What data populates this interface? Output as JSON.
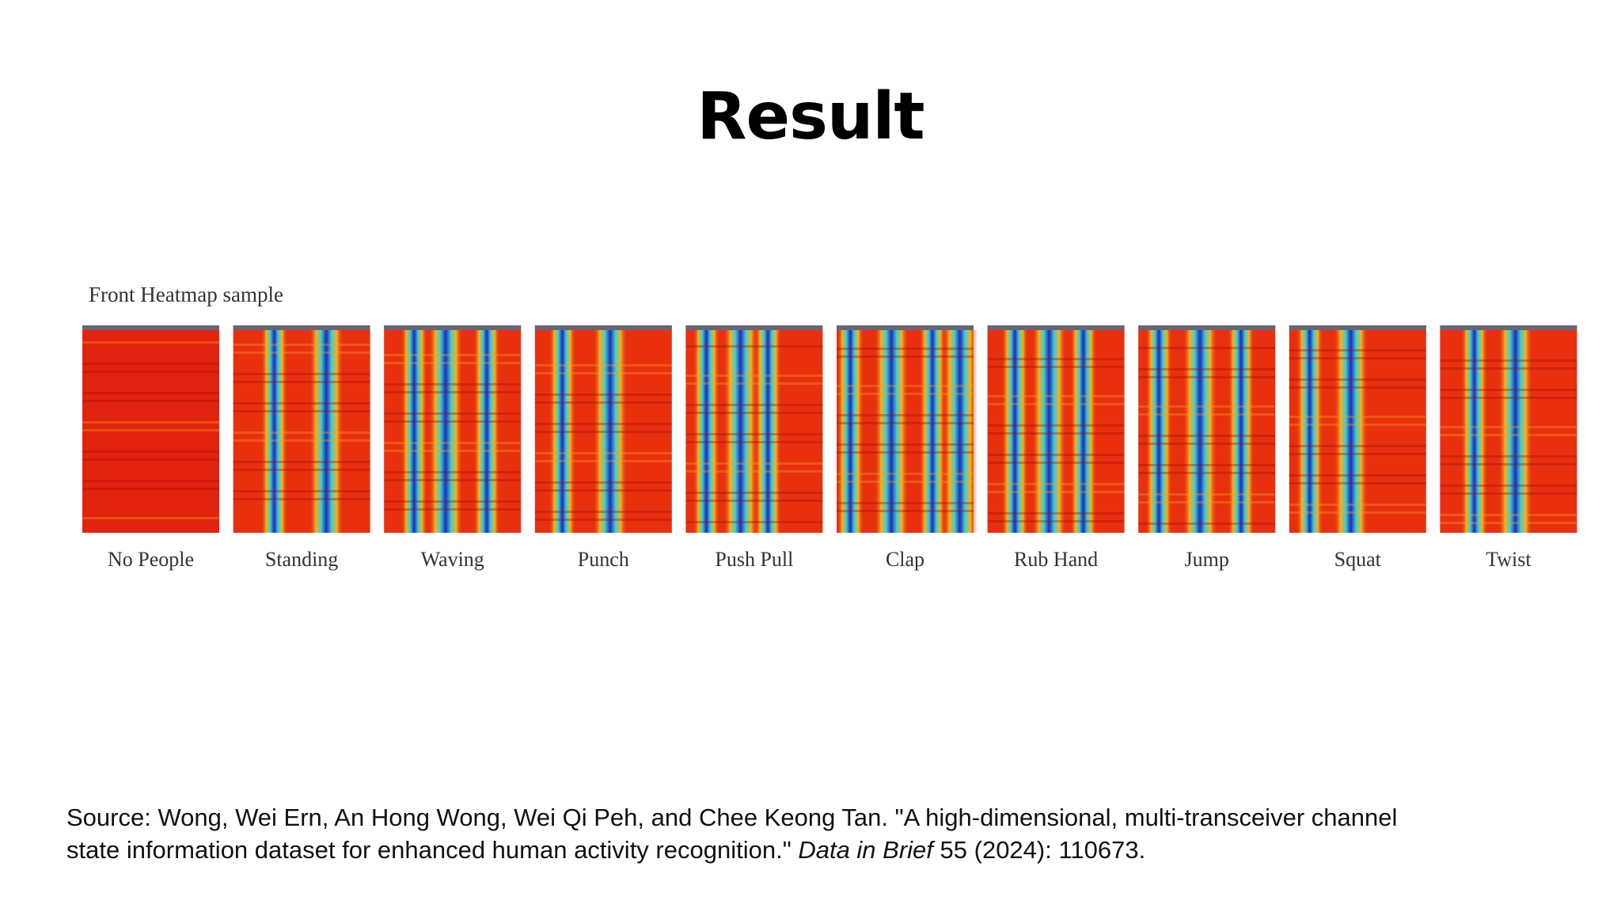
{
  "slide": {
    "title": "Result"
  },
  "figure": {
    "caption": "Front Heatmap sample",
    "panels": [
      "No People",
      "Standing",
      "Waving",
      "Punch",
      "Push Pull",
      "Clap",
      "Rub Hand",
      "Jump",
      "Squat",
      "Twist"
    ]
  },
  "source": {
    "text_1": "Source: Wong, Wei Ern, An Hong Wong, Wei Qi Peh, and Chee Keong Tan. \"A high-dimensional, multi-transceiver channel",
    "text_2": "state information dataset for enhanced human activity recognition.\"",
    "journal": "Data in Brief",
    "text_3": "55 (2024): 110673."
  }
}
